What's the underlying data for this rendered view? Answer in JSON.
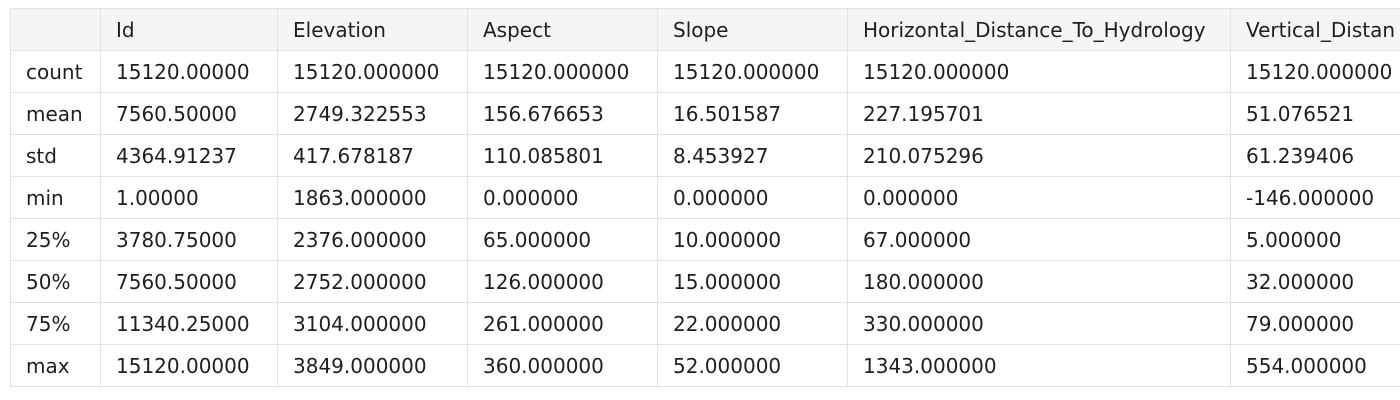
{
  "table": {
    "columns": [
      "",
      "Id",
      "Elevation",
      "Aspect",
      "Slope",
      "Horizontal_Distance_To_Hydrology",
      "Vertical_Distan"
    ],
    "rows": [
      {
        "label": "count",
        "values": [
          "15120.00000",
          "15120.000000",
          "15120.000000",
          "15120.000000",
          "15120.000000",
          "15120.000000"
        ]
      },
      {
        "label": "mean",
        "values": [
          "7560.50000",
          "2749.322553",
          "156.676653",
          "16.501587",
          "227.195701",
          "51.076521"
        ]
      },
      {
        "label": "std",
        "values": [
          "4364.91237",
          "417.678187",
          "110.085801",
          "8.453927",
          "210.075296",
          "61.239406"
        ]
      },
      {
        "label": "min",
        "values": [
          "1.00000",
          "1863.000000",
          "0.000000",
          "0.000000",
          "0.000000",
          "-146.000000"
        ]
      },
      {
        "label": "25%",
        "values": [
          "3780.75000",
          "2376.000000",
          "65.000000",
          "10.000000",
          "67.000000",
          "5.000000"
        ]
      },
      {
        "label": "50%",
        "values": [
          "7560.50000",
          "2752.000000",
          "126.000000",
          "15.000000",
          "180.000000",
          "32.000000"
        ]
      },
      {
        "label": "75%",
        "values": [
          "11340.25000",
          "3104.000000",
          "261.000000",
          "22.000000",
          "330.000000",
          "79.000000"
        ]
      },
      {
        "label": "max",
        "values": [
          "15120.00000",
          "3849.000000",
          "360.000000",
          "52.000000",
          "1343.000000",
          "554.000000"
        ]
      }
    ]
  }
}
